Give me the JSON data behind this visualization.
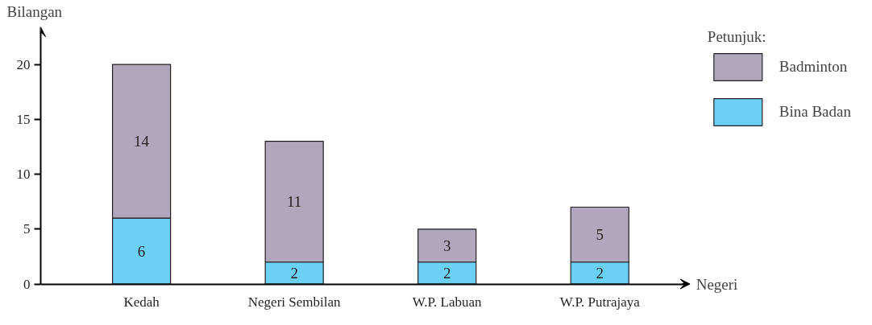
{
  "chart_data": {
    "type": "bar",
    "stacked": true,
    "xlabel": "Negeri",
    "ylabel": "Bilangan",
    "legend_title": "Petunjuk:",
    "categories": [
      "Kedah",
      "Negeri Sembilan",
      "W.P. Labuan",
      "W.P. Putrajaya"
    ],
    "series": [
      {
        "name": "Bina Badan",
        "color": "#6cd0f5",
        "values": [
          6,
          2,
          2,
          2
        ]
      },
      {
        "name": "Badminton",
        "color": "#b0a7bd",
        "values": [
          14,
          11,
          3,
          5
        ]
      }
    ],
    "ylim": [
      0,
      23
    ],
    "yticks": [
      0,
      5,
      10,
      15,
      20
    ],
    "grid": false,
    "legend": "right",
    "data_labels": true
  }
}
